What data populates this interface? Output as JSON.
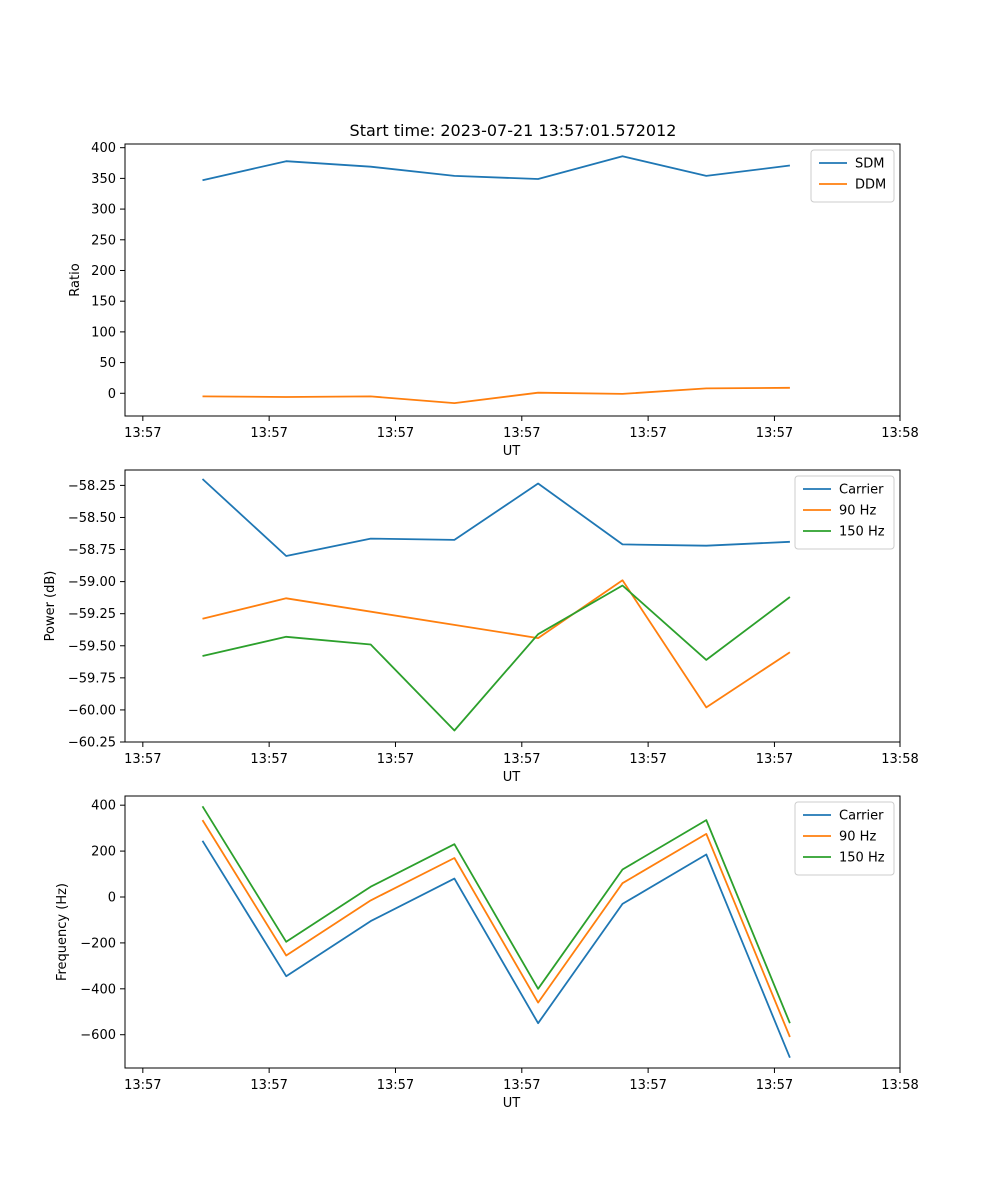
{
  "title": "Start time: 2023-07-21 13:57:01.572012",
  "chart_data": [
    {
      "type": "line",
      "xlabel": "UT",
      "ylabel": "Ratio",
      "x_tick_labels": [
        "13:57",
        "13:57",
        "13:57",
        "13:57",
        "13:57",
        "13:57",
        "13:58"
      ],
      "y_ticks": [
        0,
        50,
        100,
        150,
        200,
        250,
        300,
        350,
        400
      ],
      "y_tick_labels": [
        "0",
        "50",
        "100",
        "150",
        "200",
        "250",
        "300",
        "350",
        "400"
      ],
      "ylim": [
        -37,
        406
      ],
      "xlim": [
        0,
        10
      ],
      "legend_position": "upper-right",
      "x": [
        1.0,
        2.08,
        3.17,
        4.25,
        5.33,
        6.42,
        7.5,
        8.58
      ],
      "series": [
        {
          "name": "SDM",
          "color": "#1f77b4",
          "values": [
            347,
            378,
            369,
            354,
            349,
            386,
            354,
            371
          ]
        },
        {
          "name": "DDM",
          "color": "#ff7f0e",
          "values": [
            -5,
            -6,
            -5,
            -16,
            1,
            -1,
            8,
            9
          ]
        }
      ]
    },
    {
      "type": "line",
      "xlabel": "UT",
      "ylabel": "Power (dB)",
      "x_tick_labels": [
        "13:57",
        "13:57",
        "13:57",
        "13:57",
        "13:57",
        "13:57",
        "13:58"
      ],
      "y_ticks": [
        -60.25,
        -60.0,
        -59.75,
        -59.5,
        -59.25,
        -59.0,
        -58.75,
        -58.5,
        -58.25
      ],
      "y_tick_labels": [
        "−60.25",
        "−60.00",
        "−59.75",
        "−59.50",
        "−59.25",
        "−59.00",
        "−58.75",
        "−58.50",
        "−58.25"
      ],
      "ylim": [
        -60.25,
        -58.13
      ],
      "xlim": [
        0,
        10
      ],
      "legend_position": "upper-right",
      "x": [
        1.0,
        2.08,
        3.17,
        4.25,
        5.33,
        6.42,
        7.5,
        8.58
      ],
      "series": [
        {
          "name": "Carrier",
          "color": "#1f77b4",
          "values": [
            -58.2,
            -58.8,
            -58.665,
            -58.675,
            -58.235,
            -58.71,
            -58.72,
            -58.69
          ]
        },
        {
          "name": "90 Hz",
          "color": "#ff7f0e",
          "values": [
            -59.29,
            -59.13,
            null,
            null,
            -59.44,
            -58.99,
            -59.98,
            -59.55
          ]
        },
        {
          "name": "150 Hz",
          "color": "#2ca02c",
          "values": [
            -59.58,
            -59.43,
            -59.49,
            -60.16,
            -59.41,
            -59.03,
            -59.61,
            -59.12
          ]
        }
      ]
    },
    {
      "type": "line",
      "xlabel": "UT",
      "ylabel": "Frequency (Hz)",
      "x_tick_labels": [
        "13:57",
        "13:57",
        "13:57",
        "13:57",
        "13:57",
        "13:57",
        "13:58"
      ],
      "y_ticks": [
        -600,
        -400,
        -200,
        0,
        200,
        400
      ],
      "y_tick_labels": [
        "−600",
        "−400",
        "−200",
        "0",
        "200",
        "400"
      ],
      "ylim": [
        -745,
        440
      ],
      "xlim": [
        0,
        10
      ],
      "legend_position": "upper-right",
      "x": [
        1.0,
        2.08,
        3.17,
        4.25,
        5.33,
        6.42,
        7.5,
        8.58
      ],
      "series": [
        {
          "name": "Carrier",
          "color": "#1f77b4",
          "values": [
            245,
            -345,
            -105,
            80,
            -550,
            -30,
            185,
            -700
          ]
        },
        {
          "name": "90 Hz",
          "color": "#ff7f0e",
          "values": [
            335,
            -255,
            -15,
            170,
            -460,
            60,
            275,
            -610
          ]
        },
        {
          "name": "150 Hz",
          "color": "#2ca02c",
          "values": [
            395,
            -195,
            45,
            230,
            -400,
            120,
            335,
            -550
          ]
        }
      ]
    }
  ]
}
